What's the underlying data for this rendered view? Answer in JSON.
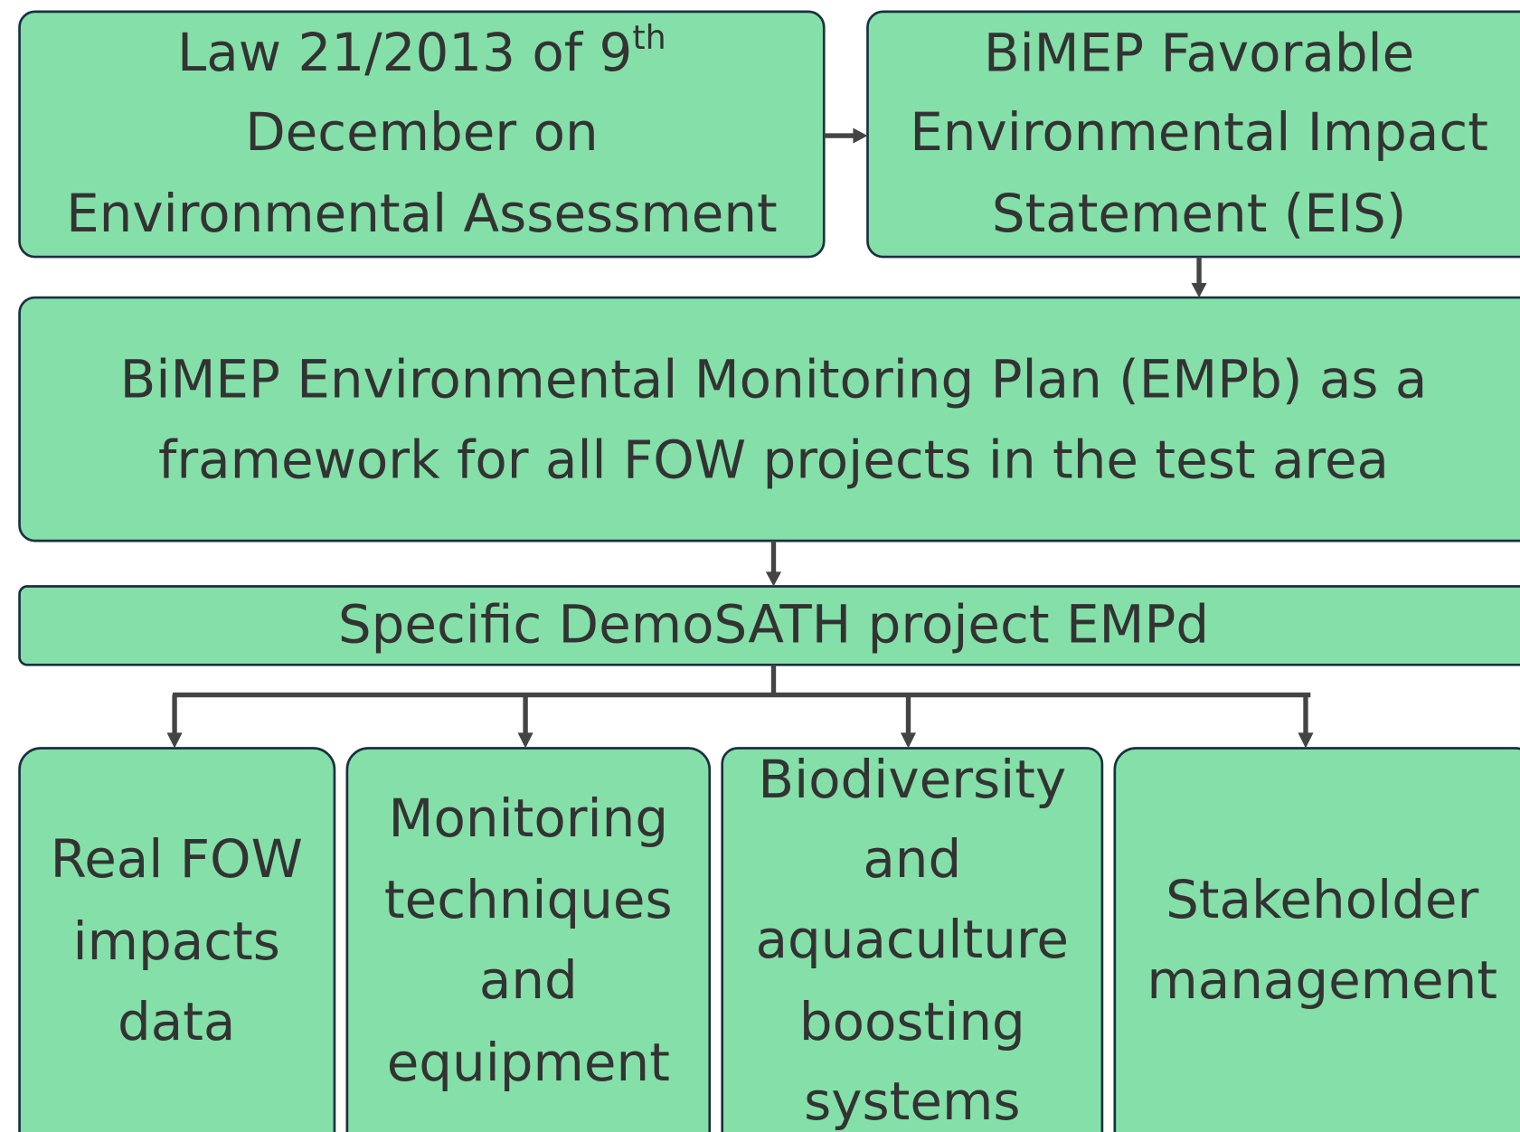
{
  "nodes": [
    {
      "lines": [
        "Law 21/2013 of 9",
        "December on",
        "Environmental Assessment"
      ],
      "superscript": "th"
    },
    {
      "lines": [
        "BiMEP Favorable",
        "Environmental Impact",
        "Statement (EIS)"
      ]
    },
    {
      "lines": [
        "BiMEP Environmental Monitoring Plan (EMPb) as a",
        "framework for all FOW projects in the test area"
      ]
    },
    {
      "lines": [
        "Specific DemoSATH project EMPd"
      ]
    },
    {
      "lines": [
        "Real FOW",
        "impacts",
        "data"
      ]
    },
    {
      "lines": [
        "Monitoring",
        "techniques",
        "and",
        "equipment"
      ]
    },
    {
      "lines": [
        "Biodiversity",
        "and",
        "aquaculture",
        "boosting",
        "systems"
      ]
    },
    {
      "lines": [
        "Stakeholder",
        "management"
      ]
    }
  ]
}
